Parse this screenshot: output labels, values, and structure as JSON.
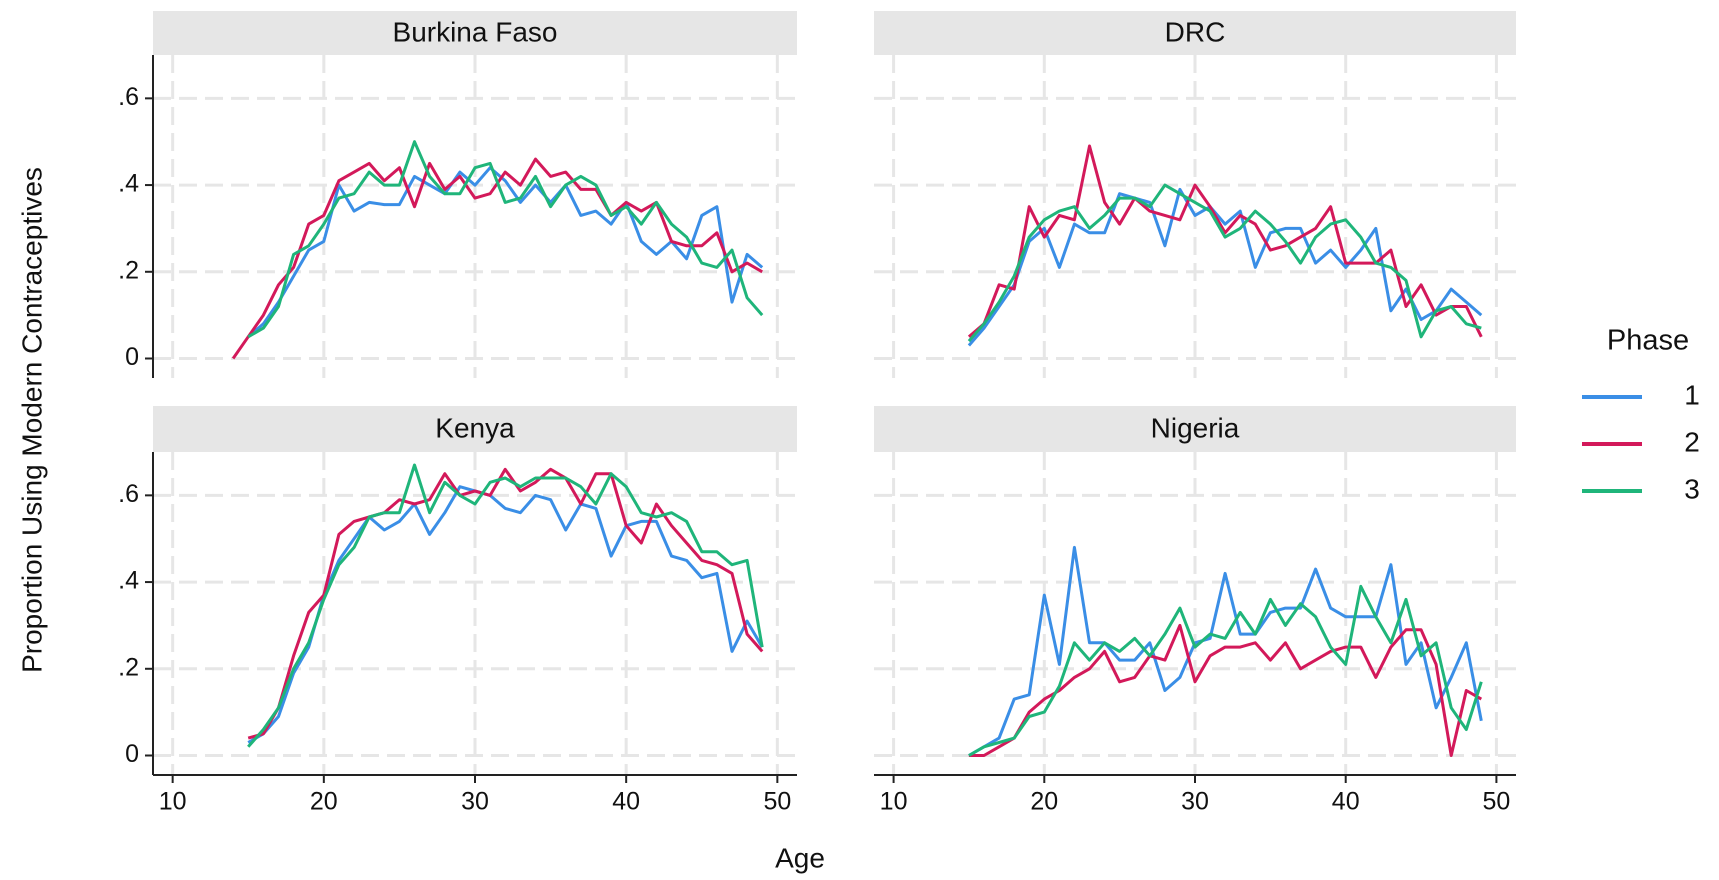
{
  "ylabel": "Proportion Using Modern Contraceptives",
  "xlabel": "Age",
  "legend_title": "Phase",
  "chart_data": [
    {
      "type": "line",
      "title": "Burkina Faso",
      "xlim": [
        8.7,
        51.3
      ],
      "ylim": [
        -0.045,
        0.7
      ],
      "xticks": [
        10,
        20,
        30,
        40,
        50
      ],
      "yticks": [
        0,
        {
          "value": 0.2,
          "label": ".2"
        },
        {
          "value": 0.4,
          "label": ".4"
        },
        {
          "value": 0.6,
          "label": ".6"
        }
      ],
      "grid": true,
      "x": [
        14,
        15,
        16,
        17,
        18,
        19,
        20,
        21,
        22,
        23,
        24,
        25,
        26,
        27,
        28,
        29,
        30,
        31,
        32,
        33,
        34,
        35,
        36,
        37,
        38,
        39,
        40,
        41,
        42,
        43,
        44,
        45,
        46,
        47,
        48,
        49
      ],
      "series": [
        {
          "name": "1",
          "color": "#3a8ee6",
          "values": [
            null,
            0.05,
            0.08,
            0.13,
            0.19,
            0.25,
            0.27,
            0.4,
            0.34,
            0.36,
            0.355,
            0.355,
            0.42,
            0.4,
            0.38,
            0.43,
            0.4,
            0.44,
            0.41,
            0.36,
            0.4,
            0.36,
            0.4,
            0.33,
            0.34,
            0.31,
            0.36,
            0.27,
            0.24,
            0.27,
            0.23,
            0.33,
            0.35,
            0.13,
            0.24,
            0.21
          ]
        },
        {
          "name": "2",
          "color": "#d3195a",
          "values": [
            0,
            0.05,
            0.1,
            0.17,
            0.21,
            0.31,
            0.33,
            0.41,
            0.43,
            0.45,
            0.41,
            0.44,
            0.35,
            0.45,
            0.39,
            0.42,
            0.37,
            0.38,
            0.43,
            0.4,
            0.46,
            0.42,
            0.43,
            0.39,
            0.39,
            0.33,
            0.36,
            0.34,
            0.36,
            0.27,
            0.26,
            0.26,
            0.29,
            0.2,
            0.22,
            0.2
          ]
        },
        {
          "name": "3",
          "color": "#1fb57a",
          "values": [
            null,
            0.05,
            0.07,
            0.12,
            0.24,
            0.26,
            0.31,
            0.37,
            0.38,
            0.43,
            0.4,
            0.4,
            0.5,
            0.42,
            0.38,
            0.38,
            0.44,
            0.45,
            0.36,
            0.37,
            0.42,
            0.35,
            0.4,
            0.42,
            0.4,
            0.33,
            0.35,
            0.31,
            0.36,
            0.31,
            0.28,
            0.22,
            0.21,
            0.25,
            0.14,
            0.1
          ]
        }
      ]
    },
    {
      "type": "line",
      "title": "DRC",
      "xlim": [
        8.7,
        51.3
      ],
      "ylim": [
        -0.045,
        0.7
      ],
      "xticks": [
        10,
        20,
        30,
        40,
        50
      ],
      "yticks": [
        0,
        {
          "value": 0.2,
          "label": ".2"
        },
        {
          "value": 0.4,
          "label": ".4"
        },
        {
          "value": 0.6,
          "label": ".6"
        }
      ],
      "grid": true,
      "x": [
        15,
        16,
        17,
        18,
        19,
        20,
        21,
        22,
        23,
        24,
        25,
        26,
        27,
        28,
        29,
        30,
        31,
        32,
        33,
        34,
        35,
        36,
        37,
        38,
        39,
        40,
        41,
        42,
        43,
        44,
        45,
        46,
        47,
        48,
        49
      ],
      "series": [
        {
          "name": "1",
          "color": "#3a8ee6",
          "values": [
            0.03,
            0.07,
            0.12,
            0.17,
            0.27,
            0.3,
            0.21,
            0.31,
            0.29,
            0.29,
            0.38,
            0.37,
            0.36,
            0.26,
            0.39,
            0.33,
            0.35,
            0.31,
            0.34,
            0.21,
            0.29,
            0.3,
            0.3,
            0.22,
            0.25,
            0.21,
            0.25,
            0.3,
            0.11,
            0.16,
            0.09,
            0.11,
            0.16,
            0.13,
            0.1
          ]
        },
        {
          "name": "2",
          "color": "#d3195a",
          "values": [
            0.05,
            0.08,
            0.17,
            0.16,
            0.35,
            0.28,
            0.33,
            0.32,
            0.49,
            0.36,
            0.31,
            0.37,
            0.34,
            0.33,
            0.32,
            0.4,
            0.35,
            0.29,
            0.33,
            0.31,
            0.25,
            0.26,
            0.28,
            0.3,
            0.35,
            0.22,
            0.22,
            0.22,
            0.25,
            0.12,
            0.17,
            0.1,
            0.12,
            0.12,
            0.05
          ]
        },
        {
          "name": "3",
          "color": "#1fb57a",
          "values": [
            0.04,
            0.08,
            0.13,
            0.19,
            0.28,
            0.32,
            0.34,
            0.35,
            0.3,
            0.33,
            0.37,
            0.37,
            0.35,
            0.4,
            0.38,
            0.36,
            0.34,
            0.28,
            0.3,
            0.34,
            0.31,
            0.27,
            0.22,
            0.28,
            0.31,
            0.32,
            0.28,
            0.22,
            0.21,
            0.18,
            0.05,
            0.11,
            0.12,
            0.08,
            0.07
          ]
        }
      ]
    },
    {
      "type": "line",
      "title": "Kenya",
      "xlim": [
        8.7,
        51.3
      ],
      "ylim": [
        -0.045,
        0.7
      ],
      "xticks": [
        10,
        20,
        30,
        40,
        50
      ],
      "yticks": [
        0,
        {
          "value": 0.2,
          "label": ".2"
        },
        {
          "value": 0.4,
          "label": ".4"
        },
        {
          "value": 0.6,
          "label": ".6"
        }
      ],
      "grid": true,
      "x": [
        15,
        16,
        17,
        18,
        19,
        20,
        21,
        22,
        23,
        24,
        25,
        26,
        27,
        28,
        29,
        30,
        31,
        32,
        33,
        34,
        35,
        36,
        37,
        38,
        39,
        40,
        41,
        42,
        43,
        44,
        45,
        46,
        47,
        48,
        49
      ],
      "series": [
        {
          "name": "1",
          "color": "#3a8ee6",
          "values": [
            0.03,
            0.05,
            0.09,
            0.19,
            0.25,
            0.37,
            0.45,
            0.5,
            0.55,
            0.52,
            0.54,
            0.58,
            0.51,
            0.56,
            0.62,
            0.61,
            0.6,
            0.57,
            0.56,
            0.6,
            0.59,
            0.52,
            0.58,
            0.57,
            0.46,
            0.53,
            0.54,
            0.54,
            0.46,
            0.45,
            0.41,
            0.42,
            0.24,
            0.31,
            0.25
          ]
        },
        {
          "name": "2",
          "color": "#d3195a",
          "values": [
            0.04,
            0.05,
            0.11,
            0.23,
            0.33,
            0.37,
            0.51,
            0.54,
            0.55,
            0.56,
            0.59,
            0.58,
            0.59,
            0.65,
            0.6,
            0.61,
            0.6,
            0.66,
            0.61,
            0.63,
            0.66,
            0.64,
            0.58,
            0.65,
            0.65,
            0.53,
            0.49,
            0.58,
            0.53,
            0.49,
            0.45,
            0.44,
            0.42,
            0.28,
            0.24
          ]
        },
        {
          "name": "3",
          "color": "#1fb57a",
          "values": [
            0.02,
            0.06,
            0.11,
            0.2,
            0.26,
            0.36,
            0.44,
            0.48,
            0.55,
            0.56,
            0.56,
            0.67,
            0.56,
            0.63,
            0.6,
            0.58,
            0.63,
            0.64,
            0.62,
            0.64,
            0.64,
            0.64,
            0.62,
            0.58,
            0.65,
            0.62,
            0.56,
            0.55,
            0.56,
            0.54,
            0.47,
            0.47,
            0.44,
            0.45,
            0.25
          ]
        }
      ]
    },
    {
      "type": "line",
      "title": "Nigeria",
      "xlim": [
        8.7,
        51.3
      ],
      "ylim": [
        -0.045,
        0.7
      ],
      "xticks": [
        10,
        20,
        30,
        40,
        50
      ],
      "yticks": [
        0,
        {
          "value": 0.2,
          "label": ".2"
        },
        {
          "value": 0.4,
          "label": ".4"
        },
        {
          "value": 0.6,
          "label": ".6"
        }
      ],
      "grid": true,
      "x": [
        15,
        16,
        17,
        18,
        19,
        20,
        21,
        22,
        23,
        24,
        25,
        26,
        27,
        28,
        29,
        30,
        31,
        32,
        33,
        34,
        35,
        36,
        37,
        38,
        39,
        40,
        41,
        42,
        43,
        44,
        45,
        46,
        47,
        48,
        49
      ],
      "series": [
        {
          "name": "1",
          "color": "#3a8ee6",
          "values": [
            0,
            0.02,
            0.04,
            0.13,
            0.14,
            0.37,
            0.21,
            0.48,
            0.26,
            0.26,
            0.22,
            0.22,
            0.26,
            0.15,
            0.18,
            0.26,
            0.27,
            0.42,
            0.28,
            0.28,
            0.33,
            0.34,
            0.34,
            0.43,
            0.34,
            0.32,
            0.32,
            0.32,
            0.44,
            0.21,
            0.26,
            0.11,
            0.18,
            0.26,
            0.08
          ]
        },
        {
          "name": "2",
          "color": "#d3195a",
          "values": [
            0,
            0,
            0.02,
            0.04,
            0.1,
            0.13,
            0.15,
            0.18,
            0.2,
            0.24,
            0.17,
            0.18,
            0.23,
            0.22,
            0.3,
            0.17,
            0.23,
            0.25,
            0.25,
            0.26,
            0.22,
            0.26,
            0.2,
            0.22,
            0.24,
            0.25,
            0.25,
            0.18,
            0.25,
            0.29,
            0.29,
            0.21,
            0,
            0.15,
            0.13
          ]
        },
        {
          "name": "3",
          "color": "#1fb57a",
          "values": [
            0,
            0.02,
            0.03,
            0.04,
            0.09,
            0.1,
            0.16,
            0.26,
            0.22,
            0.26,
            0.24,
            0.27,
            0.23,
            0.28,
            0.34,
            0.25,
            0.28,
            0.27,
            0.33,
            0.28,
            0.36,
            0.3,
            0.35,
            0.32,
            0.25,
            0.21,
            0.39,
            0.32,
            0.26,
            0.36,
            0.23,
            0.26,
            0.11,
            0.06,
            0.17
          ]
        }
      ]
    }
  ]
}
